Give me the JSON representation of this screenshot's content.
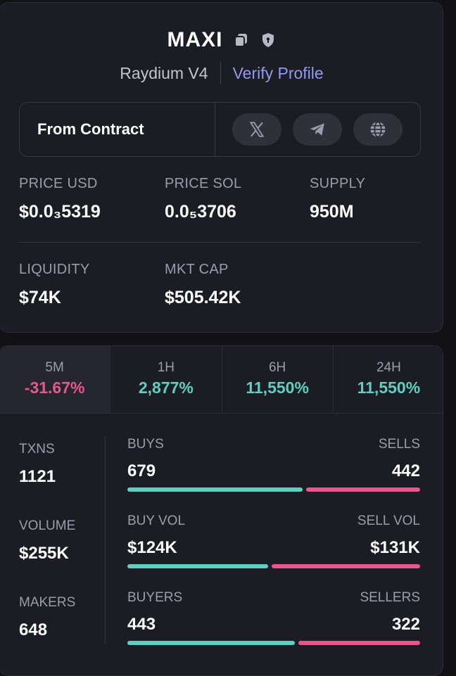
{
  "token": {
    "name": "MAXI",
    "copy_icon": "copy-icon",
    "shield_icon": "shield-lock-icon",
    "dex": "Raydium V4",
    "verify_label": "Verify Profile"
  },
  "contract": {
    "label": "From Contract",
    "socials": [
      "x-twitter-icon",
      "telegram-icon",
      "globe-icon"
    ]
  },
  "stats": {
    "price_usd": {
      "label": "PRICE USD",
      "value": "$0.0₃5319"
    },
    "price_sol": {
      "label": "PRICE SOL",
      "value": "0.0₅3706"
    },
    "supply": {
      "label": "SUPPLY",
      "value": "950M"
    },
    "liquidity": {
      "label": "LIQUIDITY",
      "value": "$74K"
    },
    "mkt_cap": {
      "label": "MKT CAP",
      "value": "$505.42K"
    }
  },
  "tabs": [
    {
      "label": "5M",
      "value": "-31.67%",
      "trend": "negative"
    },
    {
      "label": "1H",
      "value": "2,877%",
      "trend": "positive"
    },
    {
      "label": "6H",
      "value": "11,550%",
      "trend": "positive"
    },
    {
      "label": "24H",
      "value": "11,550%",
      "trend": "positive"
    }
  ],
  "metrics": {
    "txns": {
      "label": "TXNS",
      "value": "1121"
    },
    "volume": {
      "label": "VOLUME",
      "value": "$255K"
    },
    "makers": {
      "label": "MAKERS",
      "value": "648"
    }
  },
  "bars": {
    "txns": {
      "buy_label": "BUYS",
      "sell_label": "SELLS",
      "buy_value": "679",
      "sell_value": "442",
      "buy_fraction": 0.605
    },
    "volume": {
      "buy_label": "BUY VOL",
      "sell_label": "SELL VOL",
      "buy_value": "$124K",
      "sell_value": "$131K",
      "buy_fraction": 0.486
    },
    "makers": {
      "buy_label": "BUYERS",
      "sell_label": "SELLERS",
      "buy_value": "443",
      "sell_value": "322",
      "buy_fraction": 0.579
    }
  },
  "colors": {
    "positive": "#5fcfc2",
    "negative": "#e8578c",
    "accent": "#8f9bf0"
  }
}
